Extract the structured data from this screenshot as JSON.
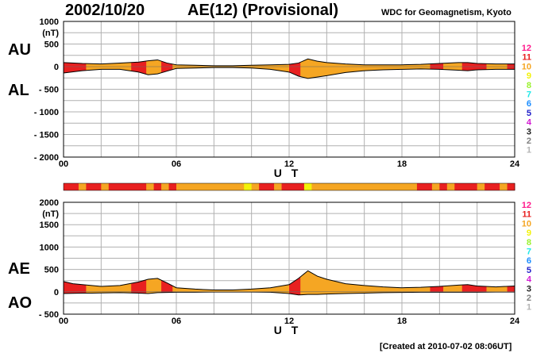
{
  "header": {
    "date": "2002/10/20",
    "title": "AE(12) (Provisional)",
    "organization": "WDC for Geomagnetism, Kyoto",
    "created": "[Created at 2010-07-02 08:06UT]"
  },
  "side_labels": {
    "au": "AU",
    "al": "AL",
    "ae": "AE",
    "ao": "AO"
  },
  "level_legend": [
    {
      "label": "12",
      "color": "#ff1a8c"
    },
    {
      "label": "11",
      "color": "#e82020"
    },
    {
      "label": "10",
      "color": "#f5a623"
    },
    {
      "label": "9",
      "color": "#f2f20a"
    },
    {
      "label": "8",
      "color": "#9af22e"
    },
    {
      "label": "7",
      "color": "#1ee8e8"
    },
    {
      "label": "6",
      "color": "#1a8cff"
    },
    {
      "label": "5",
      "color": "#2020c8"
    },
    {
      "label": "4",
      "color": "#d21ad2"
    },
    {
      "label": "3",
      "color": "#222222"
    },
    {
      "label": "2",
      "color": "#808080"
    },
    {
      "label": "1",
      "color": "#b4b4b4"
    }
  ],
  "chart_data": [
    {
      "type": "area",
      "name": "AU/AL",
      "xlabel": "U T",
      "ylabel": "(nT)",
      "xlim": [
        0,
        24
      ],
      "ylim": [
        -2000,
        1000
      ],
      "xticks": [
        "00",
        "06",
        "12",
        "18",
        "24"
      ],
      "yticks": [
        "1000",
        "500",
        "0",
        "- 500",
        "- 1000",
        "- 1500",
        "- 2000"
      ],
      "grid": true,
      "x": [
        0,
        1,
        2,
        3,
        4,
        4.5,
        5,
        5.5,
        6,
        7,
        8,
        9,
        10,
        11,
        12,
        12.5,
        13,
        13.5,
        14,
        15,
        16,
        17,
        18,
        19,
        20,
        21,
        21.5,
        22,
        23,
        24
      ],
      "series": [
        {
          "name": "AU",
          "values": [
            90,
            70,
            60,
            80,
            100,
            130,
            150,
            80,
            40,
            30,
            20,
            20,
            30,
            40,
            50,
            80,
            170,
            120,
            90,
            60,
            40,
            40,
            40,
            50,
            70,
            90,
            90,
            70,
            60,
            60
          ]
        },
        {
          "name": "AL",
          "values": [
            -140,
            -90,
            -60,
            -60,
            -120,
            -180,
            -160,
            -100,
            -40,
            -30,
            -20,
            -20,
            -30,
            -60,
            -120,
            -210,
            -260,
            -230,
            -200,
            -130,
            -90,
            -70,
            -60,
            -50,
            -60,
            -80,
            -90,
            -70,
            -60,
            -60
          ]
        }
      ]
    },
    {
      "type": "area",
      "name": "AE/AO",
      "xlabel": "U T",
      "ylabel": "(nT)",
      "xlim": [
        0,
        24
      ],
      "ylim": [
        -500,
        2000
      ],
      "xticks": [
        "00",
        "06",
        "12",
        "18",
        "24"
      ],
      "yticks": [
        "2000",
        "1500",
        "1000",
        "500",
        "0",
        "- 500"
      ],
      "grid": true,
      "x": [
        0,
        0.5,
        1,
        1.5,
        2,
        3,
        4,
        4.5,
        5,
        5.5,
        6,
        7,
        8,
        9,
        10,
        11,
        12,
        12.5,
        13,
        13.5,
        14,
        15,
        16,
        17,
        18,
        19,
        20,
        21,
        21.5,
        22,
        23,
        24
      ],
      "series": [
        {
          "name": "AE",
          "values": [
            230,
            180,
            160,
            140,
            120,
            140,
            220,
            280,
            300,
            200,
            90,
            60,
            40,
            40,
            60,
            90,
            160,
            300,
            470,
            350,
            280,
            180,
            140,
            110,
            90,
            100,
            120,
            150,
            160,
            130,
            110,
            130
          ]
        },
        {
          "name": "AO",
          "values": [
            -40,
            -35,
            -30,
            -30,
            -25,
            -20,
            -30,
            -40,
            -20,
            -15,
            -10,
            -10,
            -5,
            -5,
            -5,
            -10,
            -40,
            -70,
            -60,
            -60,
            -50,
            -40,
            -30,
            -20,
            -15,
            -10,
            -10,
            -10,
            -10,
            -10,
            -5,
            -5
          ]
        }
      ]
    }
  ],
  "level_bar": {
    "colors": [
      "#e82020",
      "#e82020",
      "#f5a623",
      "#e82020",
      "#e82020",
      "#f5a623",
      "#e82020",
      "#e82020",
      "#e82020",
      "#e82020",
      "#e82020",
      "#f5a623",
      "#e82020",
      "#f5a623",
      "#e82020",
      "#f5a623",
      "#f5a623",
      "#f5a623",
      "#f5a623",
      "#f5a623",
      "#f5a623",
      "#f5a623",
      "#f5a623",
      "#f5a623",
      "#f2f20a",
      "#f5a623",
      "#e82020",
      "#e82020",
      "#f5a623",
      "#e82020",
      "#e82020",
      "#e82020",
      "#f2f20a",
      "#f5a623",
      "#f5a623",
      "#f5a623",
      "#f5a623",
      "#f5a623",
      "#f5a623",
      "#f5a623",
      "#f5a623",
      "#f5a623",
      "#f5a623",
      "#f5a623",
      "#f5a623",
      "#f5a623",
      "#f5a623",
      "#e82020",
      "#e82020",
      "#f5a623",
      "#e82020",
      "#f5a623",
      "#e82020",
      "#e82020",
      "#e82020",
      "#f5a623",
      "#e82020",
      "#e82020",
      "#f5a623",
      "#e82020"
    ]
  }
}
